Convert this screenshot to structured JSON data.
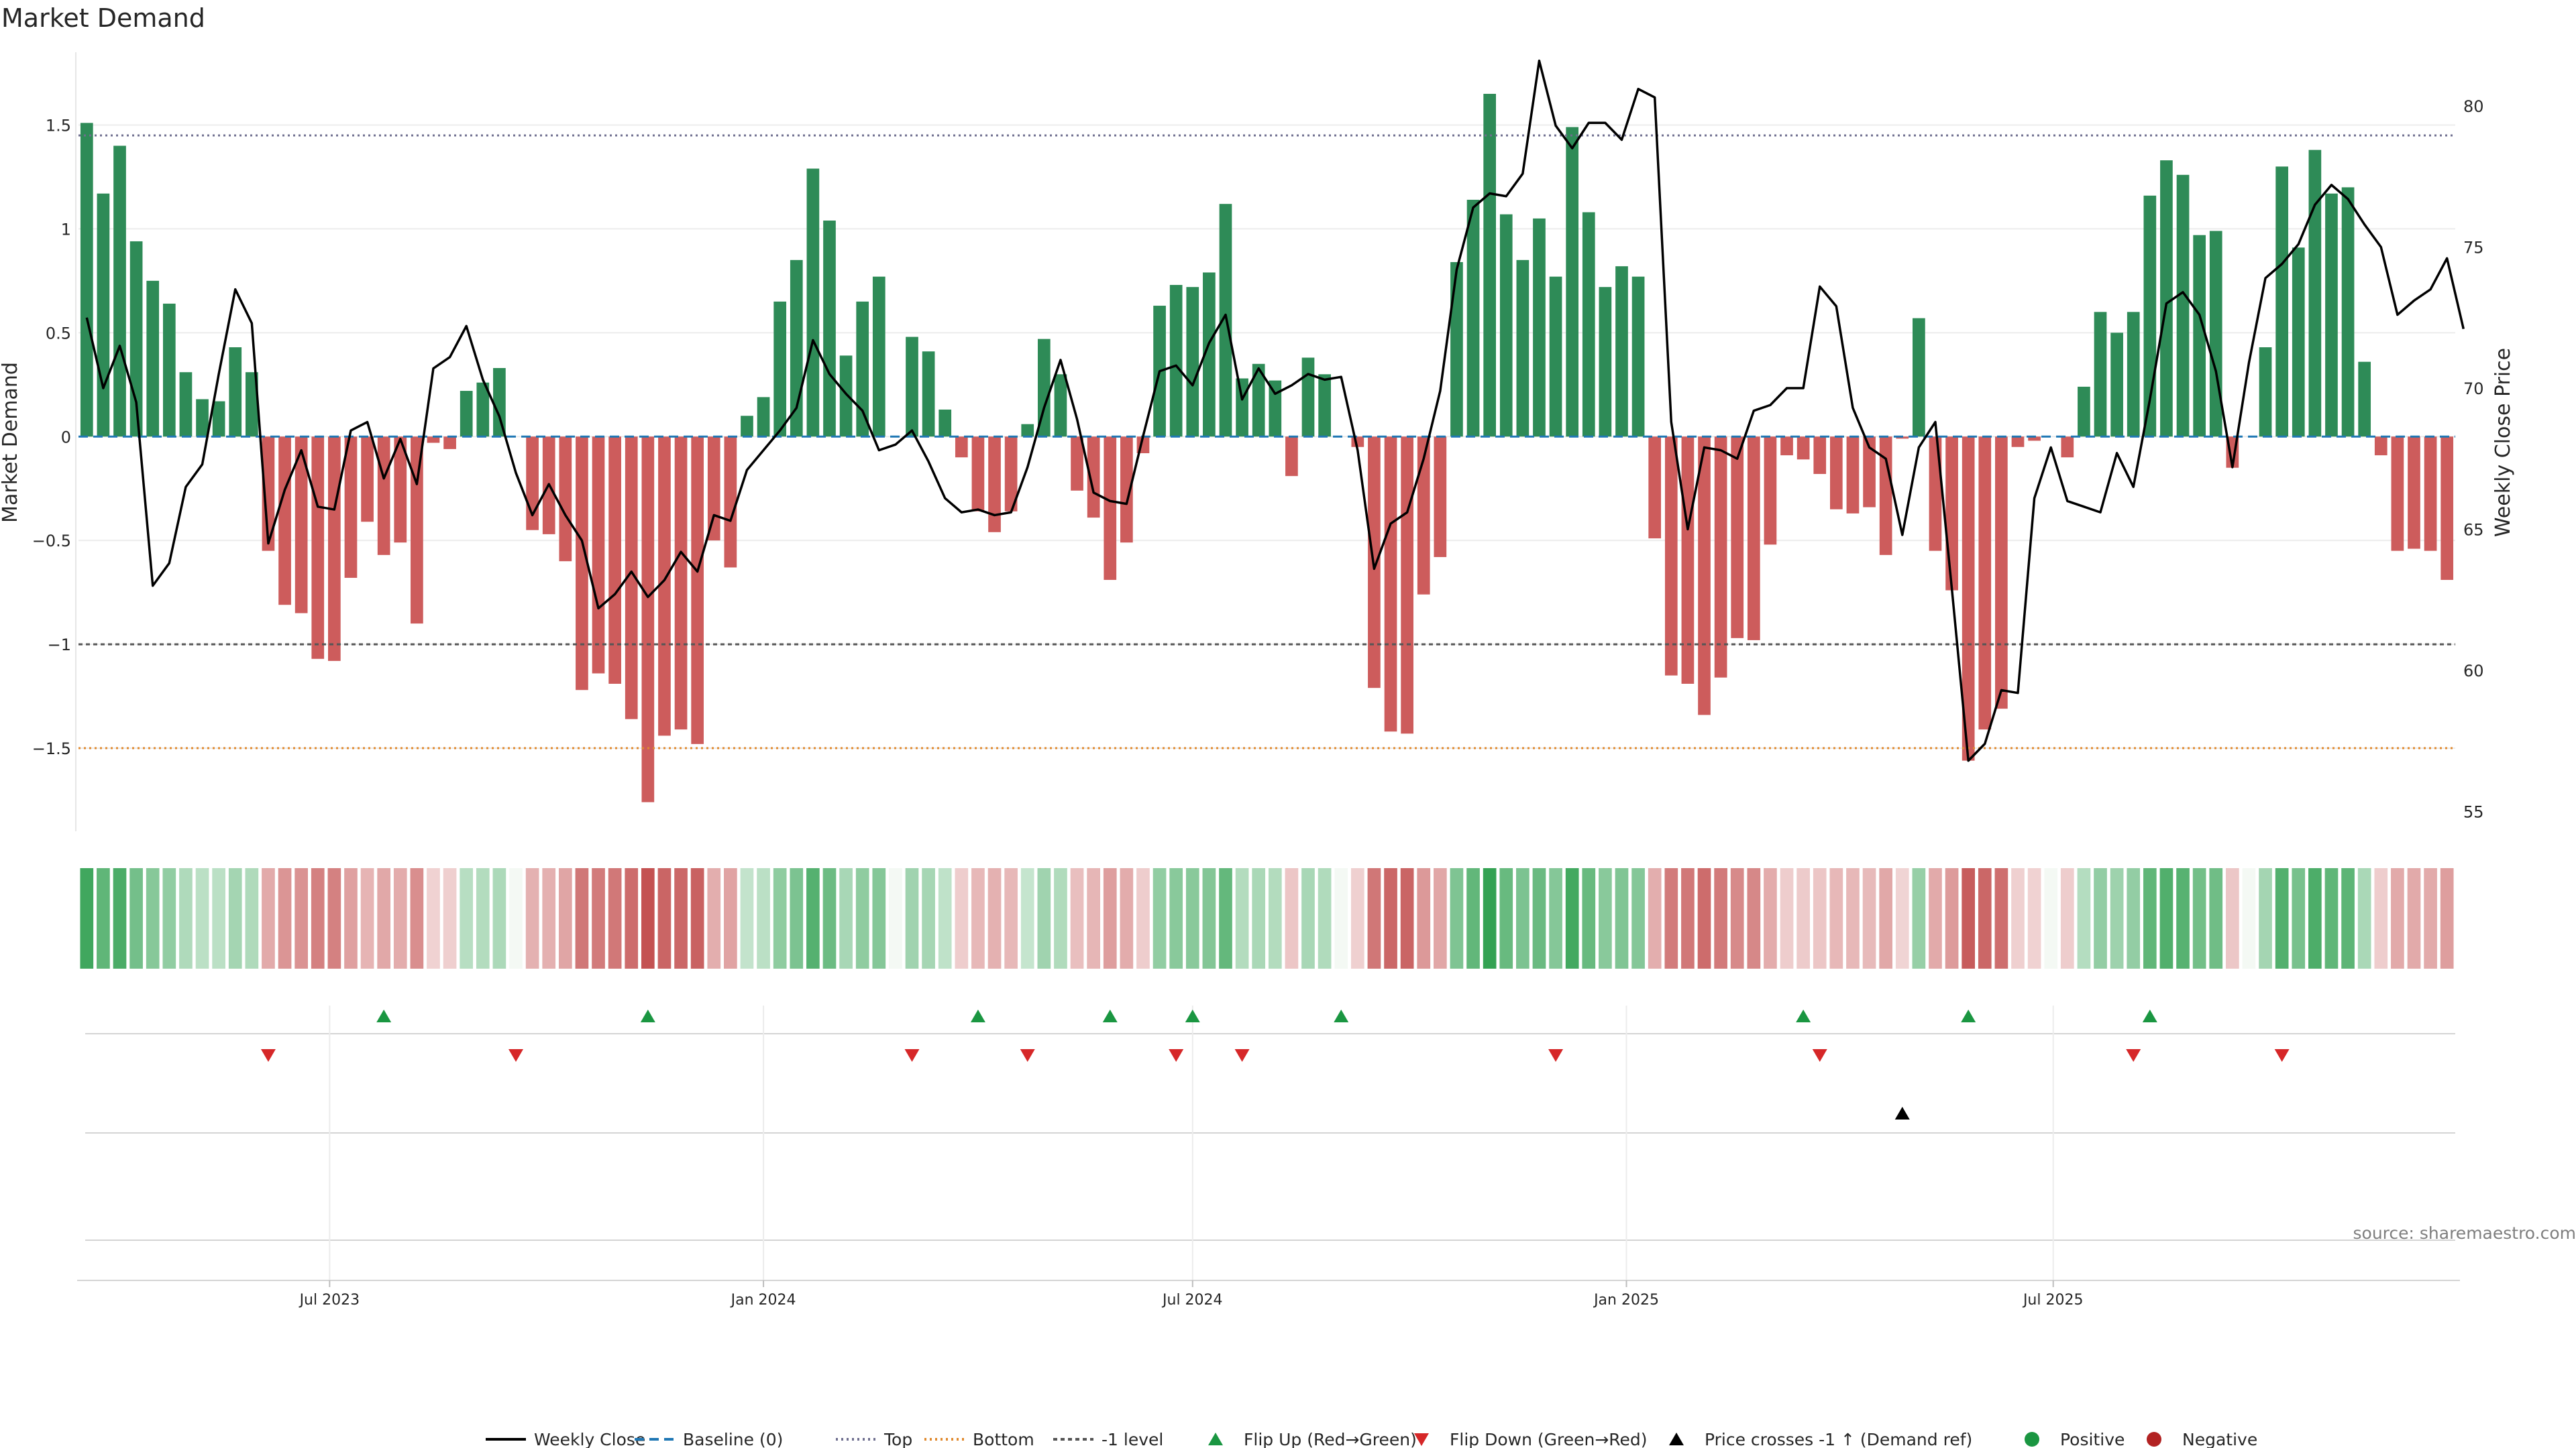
{
  "chart_data": {
    "type": "bar",
    "title": "Market Demand",
    "ylabel": "Market Demand",
    "y2label": "Weekly Close Price",
    "ylim": [
      -1.9,
      1.85
    ],
    "y2lim": [
      54.3,
      81.9
    ],
    "yticks": [
      -1.5,
      -1,
      -0.5,
      0,
      0.5,
      1,
      1.5
    ],
    "ytick_labels": [
      "−1.5",
      "−1",
      "−0.5",
      "0",
      "0.5",
      "1",
      "1.5"
    ],
    "y2ticks": [
      55,
      60,
      65,
      70,
      75,
      80
    ],
    "y2tick_labels": [
      "55",
      "60",
      "65",
      "70",
      "75",
      "80"
    ],
    "reference_lines": {
      "top": 1.45,
      "bottom": -1.5,
      "minus_one": -1.0,
      "baseline": 0
    },
    "x_start": "2023-03-20",
    "x_end": "2025-10-13",
    "xticks": [
      {
        "date": "2023-07-01",
        "label": "Jul 2023"
      },
      {
        "date": "2024-01-01",
        "label": "Jan 2024"
      },
      {
        "date": "2024-07-01",
        "label": "Jul 2024"
      },
      {
        "date": "2025-01-01",
        "label": "Jan 2025"
      },
      {
        "date": "2025-07-01",
        "label": "Jul 2025"
      }
    ],
    "demand": [
      1.51,
      1.17,
      1.4,
      0.94,
      0.75,
      0.64,
      0.31,
      0.18,
      0.17,
      0.43,
      0.31,
      -0.55,
      -0.81,
      -0.85,
      -1.07,
      -1.08,
      -0.68,
      -0.41,
      -0.57,
      -0.51,
      -0.9,
      -0.03,
      -0.06,
      0.22,
      0.26,
      0.33,
      0.0,
      -0.45,
      -0.47,
      -0.6,
      -1.22,
      -1.14,
      -1.19,
      -1.36,
      -1.76,
      -1.44,
      -1.41,
      -1.48,
      -0.5,
      -0.63,
      0.1,
      0.19,
      0.65,
      0.85,
      1.29,
      1.04,
      0.39,
      0.65,
      0.77,
      0.0,
      0.48,
      0.41,
      0.13,
      -0.1,
      -0.36,
      -0.46,
      -0.36,
      0.06,
      0.47,
      0.3,
      -0.26,
      -0.39,
      -0.69,
      -0.51,
      -0.08,
      0.63,
      0.73,
      0.72,
      0.79,
      1.12,
      0.28,
      0.35,
      0.27,
      -0.19,
      0.38,
      0.3,
      0.0,
      -0.05,
      -1.21,
      -1.42,
      -1.43,
      -0.76,
      -0.58,
      0.84,
      1.14,
      1.65,
      1.07,
      0.85,
      1.05,
      0.77,
      1.49,
      1.08,
      0.72,
      0.82,
      0.77,
      -0.49,
      -1.15,
      -1.19,
      -1.34,
      -1.16,
      -0.97,
      -0.98,
      -0.52,
      -0.09,
      -0.11,
      -0.18,
      -0.35,
      -0.37,
      -0.34,
      -0.57,
      -0.01,
      0.57,
      -0.55,
      -0.74,
      -1.56,
      -1.41,
      -1.31,
      -0.05,
      -0.02,
      0.0,
      -0.1,
      0.24,
      0.6,
      0.5,
      0.6,
      1.16,
      1.33,
      1.26,
      0.97,
      0.99,
      -0.15,
      0.0,
      0.43,
      1.3,
      0.91,
      1.38,
      1.17,
      1.2,
      0.36,
      -0.09,
      -0.55,
      -0.54,
      -0.55,
      -0.69
    ],
    "price": [
      72.5,
      70.0,
      71.5,
      69.5,
      63.0,
      63.8,
      66.5,
      67.3,
      70.5,
      73.5,
      72.3,
      64.5,
      66.4,
      67.8,
      65.8,
      65.7,
      68.5,
      68.8,
      66.8,
      68.2,
      66.6,
      70.7,
      71.1,
      72.2,
      70.3,
      69.0,
      67.0,
      65.5,
      66.6,
      65.5,
      64.6,
      62.2,
      62.7,
      63.5,
      62.6,
      63.2,
      64.2,
      63.5,
      65.5,
      65.3,
      67.1,
      67.8,
      68.5,
      69.3,
      71.7,
      70.5,
      69.8,
      69.2,
      67.8,
      68.0,
      68.5,
      67.4,
      66.1,
      65.6,
      65.7,
      65.5,
      65.6,
      67.2,
      69.3,
      71.0,
      68.9,
      66.3,
      66.0,
      65.9,
      68.3,
      70.6,
      70.8,
      70.1,
      71.6,
      72.6,
      69.6,
      70.7,
      69.8,
      70.1,
      70.5,
      70.3,
      70.4,
      67.8,
      63.6,
      65.2,
      65.6,
      67.5,
      69.9,
      74.2,
      76.4,
      76.9,
      76.8,
      77.6,
      81.6,
      79.3,
      78.5,
      79.4,
      79.4,
      78.8,
      80.6,
      80.3,
      68.8,
      65.0,
      67.9,
      67.8,
      67.5,
      69.2,
      69.4,
      70.0,
      70.0,
      73.6,
      72.9,
      69.3,
      67.9,
      67.5,
      64.8,
      67.9,
      68.8,
      62.9,
      56.8,
      57.4,
      59.3,
      59.2,
      66.1,
      67.9,
      66.0,
      65.8,
      65.6,
      67.7,
      66.5,
      69.6,
      73.0,
      73.4,
      72.6,
      70.6,
      67.2,
      70.9,
      73.9,
      74.4,
      75.1,
      76.5,
      77.2,
      76.7,
      75.8,
      75.0,
      72.6,
      73.1,
      73.5,
      74.6,
      72.1
    ],
    "flip_up": [
      "2023-07-24",
      "2023-11-13",
      "2024-04-01",
      "2024-05-27",
      "2024-07-01",
      "2024-09-02",
      "2025-03-17",
      "2025-05-26",
      "2025-08-11"
    ],
    "flip_down": [
      "2023-06-05",
      "2023-09-18",
      "2024-03-04",
      "2024-04-22",
      "2024-06-24",
      "2024-07-22",
      "2024-12-02",
      "2025-03-24",
      "2025-08-04",
      "2025-10-06"
    ],
    "cross_above_minus_one": [
      "2025-04-28"
    ],
    "legend": [
      "Weekly Close",
      "Baseline (0)",
      "Top",
      "Bottom",
      "-1 level",
      "Flip Up (Red→Green)",
      "Flip Down (Green→Red)",
      "Price crosses -1 ↑ (Demand ref)",
      "Positive",
      "Negative"
    ]
  },
  "colors": {
    "positive_bar": "#2e8b57",
    "negative_bar": "#cd5c5c",
    "price_line": "#000000",
    "baseline": "#1f77b4",
    "top_line": "#6f6f8f",
    "bottom_line": "#e08a2f",
    "minus_one_line": "#555555",
    "flip_up": "#1a9641",
    "flip_down": "#d62728",
    "cross_marker": "#000000",
    "positive_dot": "#1a9641",
    "negative_dot": "#b22222"
  },
  "source": "source: sharemaestro.com"
}
